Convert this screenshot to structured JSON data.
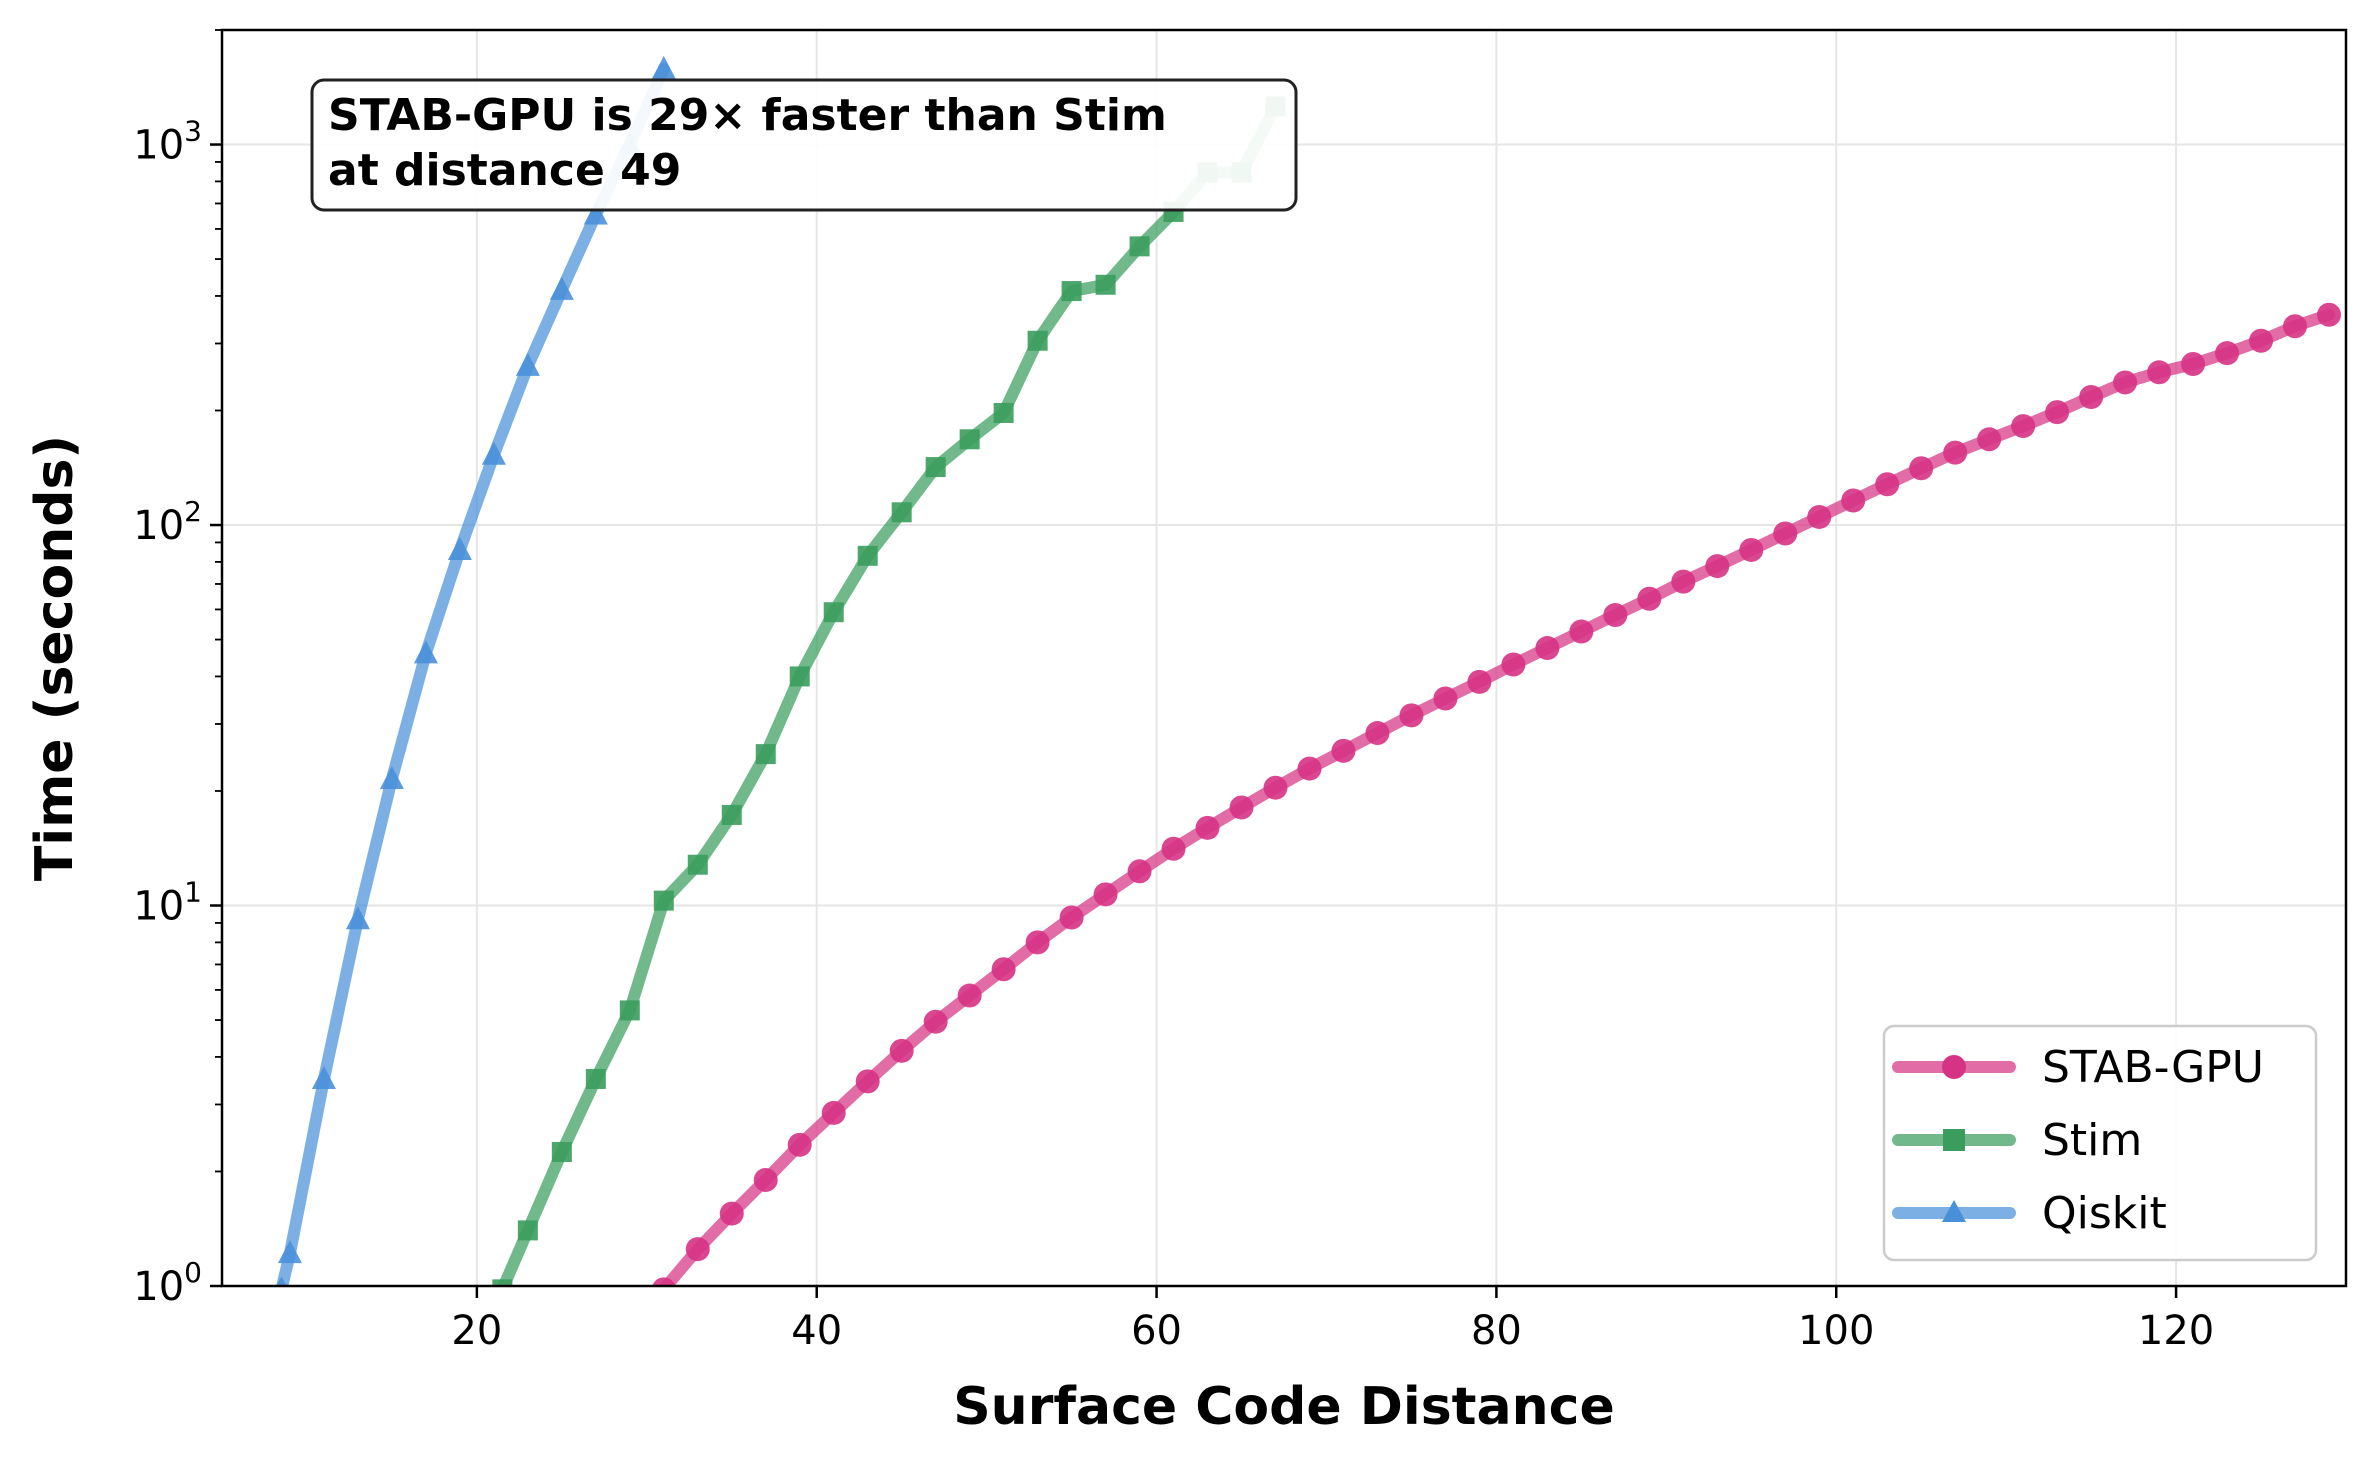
{
  "chart_data": {
    "type": "line",
    "xlabel": "Surface Code Distance",
    "ylabel": "Time (seconds)",
    "xlim": [
      5,
      130
    ],
    "ylim": [
      1,
      2000
    ],
    "yscale": "log",
    "xticks": [
      20,
      40,
      60,
      80,
      100,
      120
    ],
    "yticks": [
      {
        "value": 1,
        "base": "10",
        "exp": "0"
      },
      {
        "value": 10,
        "base": "10",
        "exp": "1"
      },
      {
        "value": 100,
        "base": "10",
        "exp": "2"
      },
      {
        "value": 1000,
        "base": "10",
        "exp": "3"
      }
    ],
    "grid": true,
    "legend_position": "lower-right",
    "annotation": {
      "lines": [
        "STAB-GPU is 29× faster than Stim",
        "at distance 49"
      ],
      "position": "top-left"
    },
    "series": [
      {
        "name": "STAB-GPU",
        "color": "#d63384",
        "marker": "circle",
        "x": [
          31,
          33,
          35,
          37,
          39,
          41,
          43,
          45,
          47,
          49,
          51,
          53,
          55,
          57,
          59,
          61,
          63,
          65,
          67,
          69,
          71,
          73,
          75,
          77,
          79,
          81,
          83,
          85,
          87,
          89,
          91,
          93,
          95,
          97,
          99,
          101,
          103,
          105,
          107,
          109,
          111,
          113,
          115,
          117,
          119,
          121,
          123,
          125,
          127,
          129
        ],
        "y": [
          0.98,
          1.25,
          1.55,
          1.9,
          2.35,
          2.85,
          3.45,
          4.15,
          4.95,
          5.8,
          6.8,
          8.0,
          9.3,
          10.7,
          12.3,
          14.1,
          16.0,
          18.1,
          20.4,
          22.9,
          25.5,
          28.4,
          31.6,
          35.0,
          38.7,
          43.0,
          47.5,
          52.5,
          58.0,
          64.0,
          71.0,
          78.0,
          86.0,
          95.0,
          105.0,
          116.0,
          128.0,
          141.0,
          155.0,
          168.0,
          182.0,
          198.0,
          217.0,
          237.0,
          252.0,
          265.0,
          283.0,
          305.0,
          333.0,
          357.0
        ]
      },
      {
        "name": "Stim",
        "color": "#3a9d5d",
        "marker": "square",
        "x": [
          21.5,
          23,
          25,
          27,
          29,
          31,
          33,
          35,
          37,
          39,
          41,
          43,
          45,
          47,
          49,
          51,
          53,
          55,
          57,
          59,
          61,
          63,
          65,
          67
        ],
        "y": [
          0.98,
          1.4,
          2.25,
          3.5,
          5.3,
          10.3,
          12.8,
          17.3,
          25.0,
          40.0,
          59.0,
          83.0,
          108.0,
          142.0,
          168.0,
          197.0,
          305.0,
          412.0,
          428.0,
          540.0,
          665.0,
          845.0,
          845.0,
          1260.0
        ]
      },
      {
        "name": "Qiskit",
        "color": "#4a90d9",
        "marker": "triangle",
        "x": [
          8.5,
          9,
          11,
          13,
          15,
          17,
          19,
          21,
          23,
          25,
          27,
          29,
          31
        ],
        "y": [
          0.98,
          1.22,
          3.5,
          9.2,
          21.5,
          46.0,
          86.0,
          153.0,
          262.0,
          415.0,
          655.0,
          1000.0,
          1580.0
        ]
      }
    ]
  }
}
